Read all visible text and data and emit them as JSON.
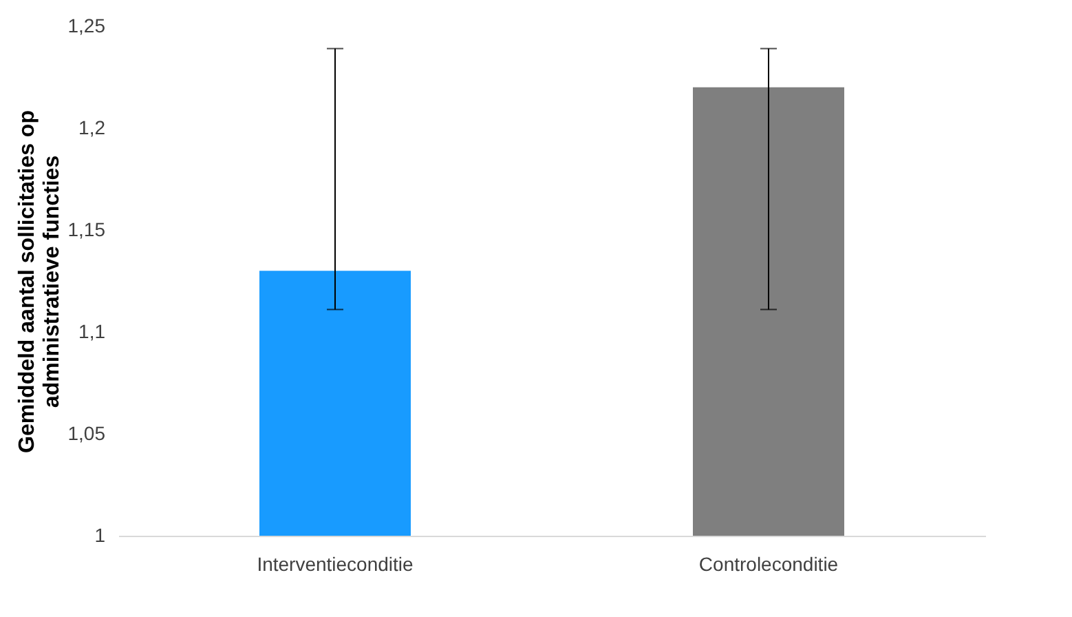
{
  "chart_data": {
    "type": "bar",
    "ylabel": "Gemiddeld aantal sollicitaties op administratieve functies",
    "categories": [
      "Interventieconditie",
      "Controleconditie"
    ],
    "values": [
      1.13,
      1.22
    ],
    "colors": [
      "#189bff",
      "#7f7f7f"
    ],
    "errors": [
      [
        1.111,
        1.239
      ],
      [
        1.111,
        1.239
      ]
    ],
    "ylim": [
      1,
      1.25
    ],
    "yticks": [
      {
        "value": 1,
        "label": "1"
      },
      {
        "value": 1.05,
        "label": "1,05"
      },
      {
        "value": 1.1,
        "label": "1,1"
      },
      {
        "value": 1.15,
        "label": "1,15"
      },
      {
        "value": 1.2,
        "label": "1,2"
      },
      {
        "value": 1.25,
        "label": "1,25"
      }
    ],
    "grid": false,
    "legend": false
  }
}
